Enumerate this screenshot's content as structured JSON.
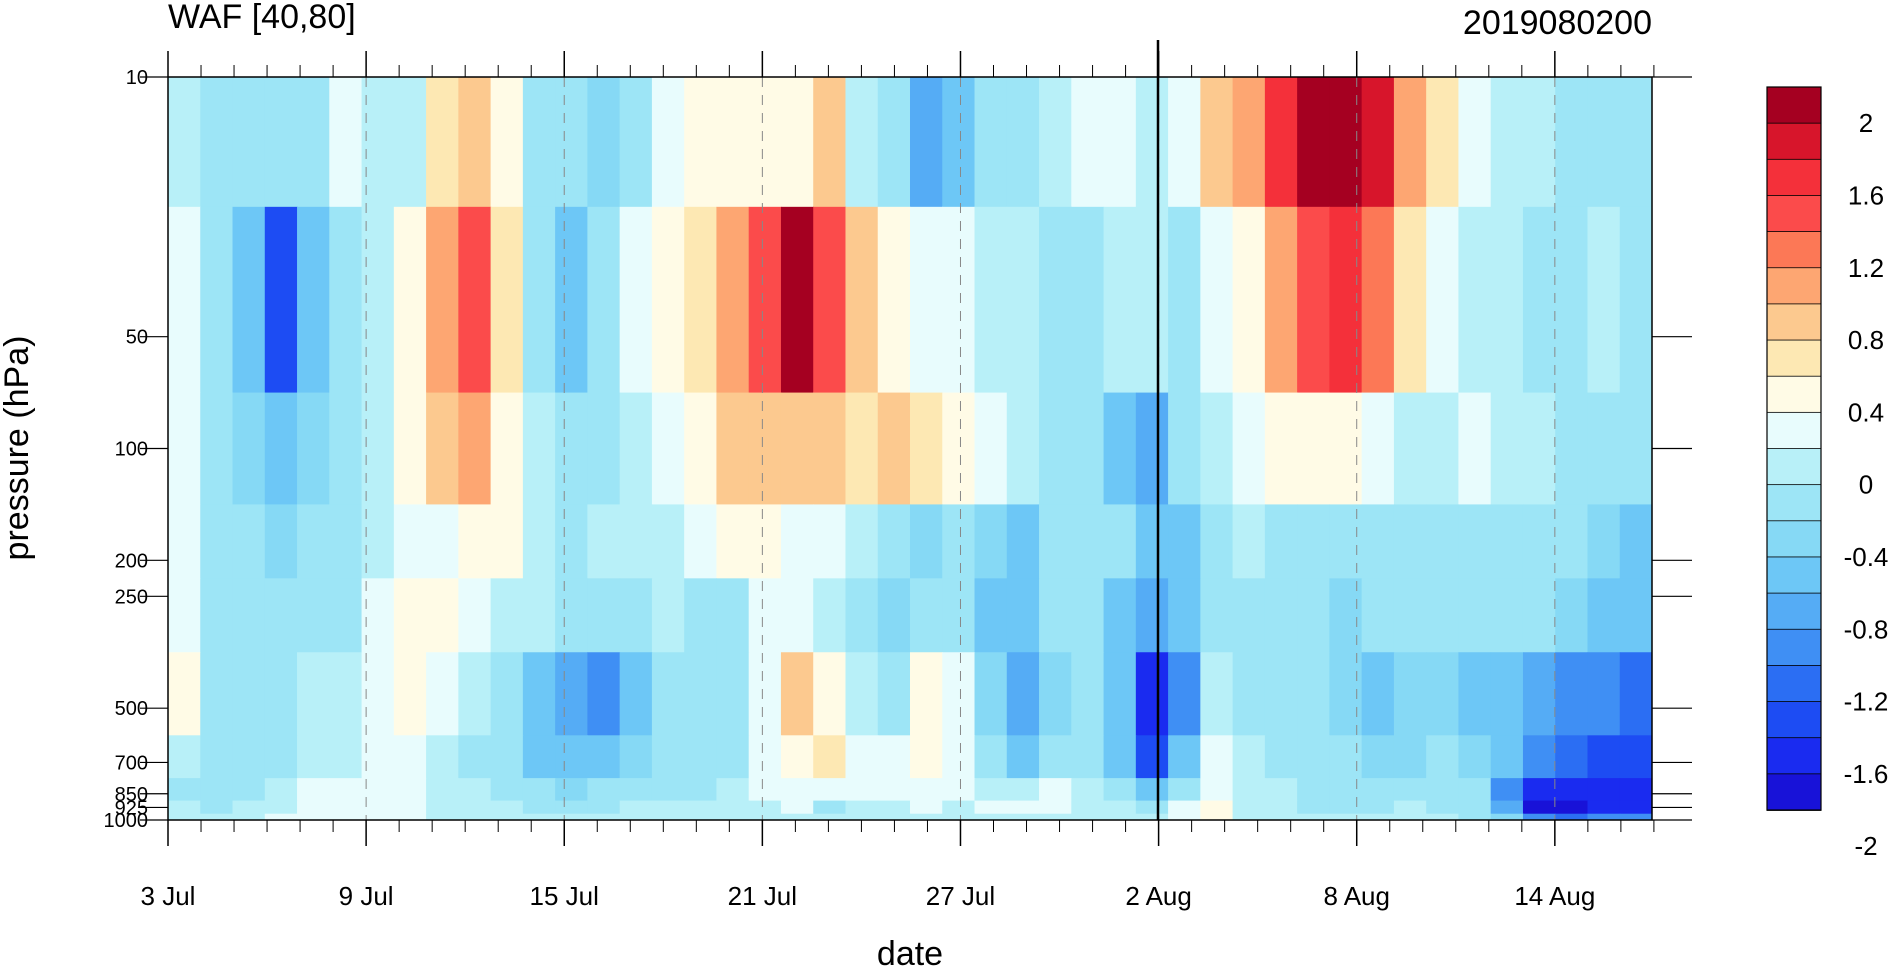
{
  "chart_data": {
    "type": "heatmap",
    "title_left": "WAF [40,80]",
    "title_right": "2019080200",
    "xlabel": "date",
    "ylabel": "pressure (hPa)",
    "x_tick_labels": [
      "3 Jul",
      "9 Jul",
      "15 Jul",
      "21 Jul",
      "27 Jul",
      "2 Aug",
      "8 Aug",
      "14 Aug"
    ],
    "y_levels": [
      10,
      50,
      100,
      200,
      250,
      500,
      700,
      850,
      925,
      1000
    ],
    "y_tick_labels": [
      "10",
      "50",
      "100",
      "200",
      "250",
      "500",
      "700",
      "850",
      "925",
      "1000"
    ],
    "y_scale": "log",
    "ylim": [
      1000,
      10
    ],
    "x_range_days": [
      "3 Jul",
      "17 Aug"
    ],
    "marked_date": "2 Aug",
    "colorbar": {
      "labels": [
        "2",
        "1.6",
        "1.2",
        "0.8",
        "0.4",
        "0",
        "-0.4",
        "-0.8",
        "-1.2",
        "-1.6",
        "-2"
      ],
      "colors": [
        "#a50021",
        "#d7152b",
        "#f4303a",
        "#fb4b4b",
        "#fc7856",
        "#fda672",
        "#fcc98f",
        "#fde8b3",
        "#fffbe6",
        "#e8fcfd",
        "#b8f0f8",
        "#9de5f6",
        "#86d9f5",
        "#6dc7f6",
        "#55acf5",
        "#3f8ff4",
        "#2b6ef3",
        "#1d4cf3",
        "#1a2bf0",
        "#1812d8"
      ]
    },
    "rows_by_level": [
      10,
      50,
      100,
      200,
      250,
      500,
      700,
      850,
      925,
      1000
    ],
    "values": [
      [
        -0.1,
        -0.3,
        -0.4,
        -0.3,
        -0.2,
        0.1,
        0.0,
        -0.1,
        0.5,
        0.6,
        0.4,
        -0.2,
        -0.3,
        -0.5,
        -0.4,
        0.1,
        0.3,
        0.4,
        0.3,
        0.4,
        0.6,
        -0.1,
        -0.4,
        -0.9,
        -0.6,
        -0.3,
        -0.2,
        -0.1,
        0.2,
        0.1,
        -0.1,
        0.2,
        0.6,
        1.0,
        1.5,
        2.1,
        2.1,
        1.7,
        1.0,
        0.5,
        0.2,
        0.0,
        -0.1,
        -0.3,
        -0.4,
        -0.3
      ],
      [
        0.2,
        -0.2,
        -0.6,
        -1.4,
        -0.7,
        -0.3,
        -0.1,
        0.3,
        0.9,
        1.3,
        0.5,
        -0.3,
        -0.8,
        -0.4,
        0.2,
        0.3,
        0.5,
        0.9,
        1.4,
        1.9,
        1.3,
        0.6,
        0.3,
        0.2,
        0.1,
        0.0,
        -0.1,
        -0.2,
        -0.4,
        -0.1,
        0.0,
        -0.2,
        0.1,
        0.4,
        0.9,
        1.3,
        1.5,
        1.1,
        0.5,
        0.2,
        0.0,
        -0.1,
        -0.3,
        -0.2,
        -0.1,
        -0.4
      ],
      [
        0.1,
        -0.3,
        -0.5,
        -0.8,
        -0.5,
        -0.2,
        0.0,
        0.3,
        0.6,
        0.8,
        0.4,
        -0.1,
        -0.3,
        -0.2,
        0.0,
        0.1,
        0.3,
        0.6,
        0.6,
        0.6,
        0.6,
        0.5,
        0.6,
        0.5,
        0.3,
        0.1,
        -0.1,
        -0.2,
        -0.3,
        -0.6,
        -0.9,
        -0.4,
        -0.1,
        0.1,
        0.3,
        0.4,
        0.4,
        0.2,
        0.0,
        0.0,
        0.2,
        0.0,
        -0.1,
        -0.2,
        -0.2,
        -0.3
      ],
      [
        0.1,
        -0.3,
        -0.4,
        -0.5,
        -0.4,
        -0.3,
        0.0,
        0.2,
        0.2,
        0.3,
        0.3,
        0.0,
        -0.2,
        -0.1,
        0.0,
        0.0,
        0.1,
        0.3,
        0.3,
        0.2,
        0.1,
        0.0,
        -0.3,
        -0.5,
        -0.4,
        -0.5,
        -0.6,
        -0.3,
        -0.2,
        -0.3,
        -0.7,
        -0.6,
        -0.3,
        -0.1,
        -0.2,
        -0.3,
        -0.4,
        -0.3,
        -0.2,
        -0.3,
        -0.3,
        -0.2,
        -0.3,
        -0.4,
        -0.5,
        -0.7
      ],
      [
        0.2,
        -0.3,
        -0.3,
        -0.4,
        -0.3,
        -0.2,
        0.1,
        0.4,
        0.3,
        0.2,
        0.0,
        -0.1,
        -0.4,
        -0.3,
        -0.2,
        -0.1,
        -0.2,
        -0.2,
        0.1,
        0.2,
        0.0,
        -0.3,
        -0.5,
        -0.4,
        -0.3,
        -0.6,
        -0.8,
        -0.4,
        -0.3,
        -0.6,
        -0.9,
        -0.7,
        -0.3,
        -0.2,
        -0.3,
        -0.4,
        -0.5,
        -0.4,
        -0.3,
        -0.4,
        -0.4,
        -0.3,
        -0.4,
        -0.5,
        -0.6,
        -0.7
      ],
      [
        0.3,
        -0.2,
        -0.3,
        -0.2,
        -0.1,
        0.0,
        0.1,
        0.3,
        0.2,
        -0.1,
        -0.3,
        -0.6,
        -0.9,
        -1.0,
        -0.6,
        -0.3,
        -0.2,
        -0.4,
        0.2,
        0.6,
        0.4,
        0.0,
        -0.2,
        0.3,
        0.1,
        -0.5,
        -0.9,
        -0.5,
        -0.3,
        -0.8,
        -1.7,
        -1.0,
        0.0,
        -0.2,
        -0.3,
        -0.4,
        -0.5,
        -0.6,
        -0.5,
        -0.5,
        -0.6,
        -0.7,
        -0.9,
        -1.0,
        -1.1,
        -1.2
      ],
      [
        0.0,
        -0.3,
        -0.4,
        -0.2,
        -0.1,
        0.0,
        0.1,
        0.1,
        0.0,
        -0.2,
        -0.4,
        -0.6,
        -0.8,
        -0.7,
        -0.5,
        -0.3,
        -0.2,
        -0.3,
        0.2,
        0.4,
        0.5,
        0.2,
        0.1,
        0.4,
        0.2,
        -0.3,
        -0.6,
        -0.4,
        -0.2,
        -0.6,
        -1.4,
        -0.8,
        0.1,
        -0.1,
        -0.2,
        -0.3,
        -0.4,
        -0.5,
        -0.5,
        -0.4,
        -0.5,
        -0.8,
        -1.1,
        -1.3,
        -1.4,
        -1.4
      ],
      [
        -0.2,
        -0.4,
        -0.2,
        0.0,
        0.1,
        0.1,
        0.2,
        0.1,
        0.0,
        -0.1,
        -0.3,
        -0.4,
        -0.5,
        -0.4,
        -0.3,
        -0.2,
        -0.2,
        -0.1,
        0.1,
        0.2,
        0.2,
        0.1,
        0.1,
        0.2,
        0.1,
        0.0,
        -0.1,
        0.1,
        0.0,
        -0.3,
        -0.8,
        -0.4,
        0.2,
        0.0,
        -0.1,
        -0.3,
        -0.4,
        -0.3,
        -0.2,
        -0.3,
        -0.4,
        -1.0,
        -1.6,
        -1.8,
        -1.7,
        -1.6
      ],
      [
        -0.1,
        -0.2,
        -0.1,
        0.0,
        0.1,
        0.2,
        0.2,
        0.1,
        0.0,
        0.0,
        -0.1,
        -0.2,
        -0.2,
        -0.2,
        -0.1,
        -0.1,
        -0.1,
        0.0,
        0.0,
        0.1,
        -0.2,
        -0.1,
        0.0,
        0.1,
        0.0,
        0.1,
        0.2,
        0.1,
        0.0,
        -0.1,
        -0.3,
        0.1,
        0.3,
        0.0,
        -0.1,
        -0.2,
        -0.3,
        -0.2,
        -0.1,
        -0.2,
        -0.3,
        -0.9,
        -1.9,
        -2.0,
        -1.8,
        -1.6
      ],
      [
        0.0,
        0.0,
        0.0,
        0.1,
        0.1,
        0.2,
        0.2,
        0.1,
        0.0,
        0.0,
        0.0,
        0.0,
        0.0,
        0.0,
        0.0,
        0.0,
        0.0,
        0.0,
        0.0,
        0.0,
        0.0,
        0.0,
        0.0,
        0.0,
        0.0,
        0.0,
        0.0,
        0.0,
        0.0,
        0.0,
        0.0,
        0.2,
        0.4,
        0.0,
        0.0,
        0.0,
        -0.1,
        -0.1,
        0.0,
        -0.1,
        -0.2,
        -0.5,
        -1.0,
        -1.2,
        -1.1,
        -1.0
      ]
    ]
  }
}
